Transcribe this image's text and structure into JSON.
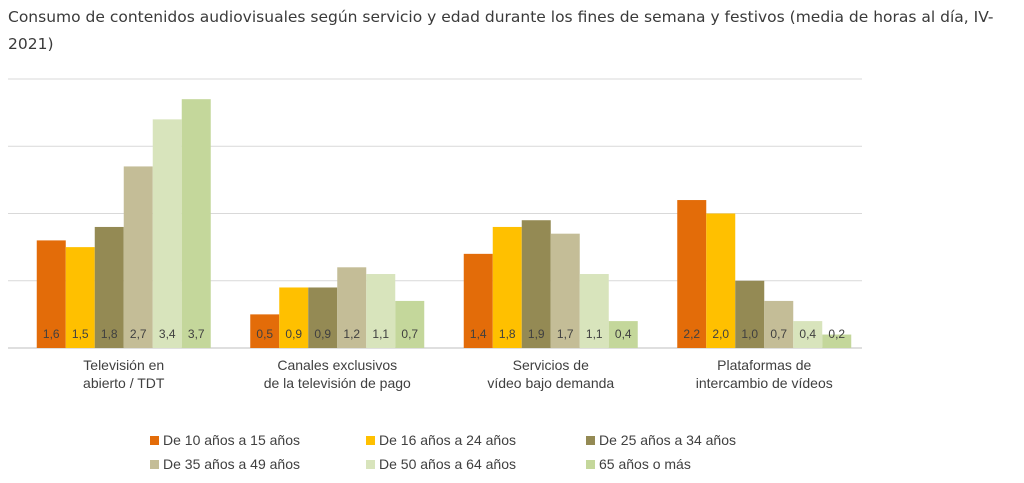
{
  "title": "Consumo de contenidos audiovisuales según servicio y edad durante los fines de semana y festivos (media de horas al día, IV-2021)",
  "chart_data": {
    "type": "bar",
    "categories": [
      [
        "Televisión en",
        "abierto / TDT"
      ],
      [
        "Canales exclusivos",
        "de la televisión de pago"
      ],
      [
        "Servicios de",
        "vídeo bajo demanda"
      ],
      [
        "Plataformas de",
        "intercambio de vídeos"
      ]
    ],
    "series": [
      {
        "name": "De 10 años a 15 años",
        "color": "#E36C09",
        "values": [
          1.6,
          0.5,
          1.4,
          2.2
        ],
        "labels": [
          "1,6",
          "0,5",
          "1,4",
          "2,2"
        ]
      },
      {
        "name": "De 16 años a 24 años",
        "color": "#FFC000",
        "values": [
          1.5,
          0.9,
          1.8,
          2.0
        ],
        "labels": [
          "1,5",
          "0,9",
          "1,8",
          "2,0"
        ]
      },
      {
        "name": "De 25 años a 34 años",
        "color": "#948A54",
        "values": [
          1.8,
          0.9,
          1.9,
          1.0
        ],
        "labels": [
          "1,8",
          "0,9",
          "1,9",
          "1,0"
        ]
      },
      {
        "name": "De 35 años a 49 años",
        "color": "#C4BD97",
        "values": [
          2.7,
          1.2,
          1.7,
          0.7
        ],
        "labels": [
          "2,7",
          "1,2",
          "1,7",
          "0,7"
        ]
      },
      {
        "name": "De 50 años a 64 años",
        "color": "#D8E4BC",
        "values": [
          3.4,
          1.1,
          1.1,
          0.4
        ],
        "labels": [
          "3,4",
          "1,1",
          "1,1",
          "0,4"
        ]
      },
      {
        "name": "65 años o más",
        "color": "#C4D79B",
        "values": [
          3.7,
          0.7,
          0.4,
          0.2
        ],
        "labels": [
          "3,7",
          "0,7",
          "0,4",
          "0,2"
        ]
      }
    ],
    "ylim": [
      0,
      4
    ],
    "grid": true,
    "legend_position": "bottom"
  }
}
